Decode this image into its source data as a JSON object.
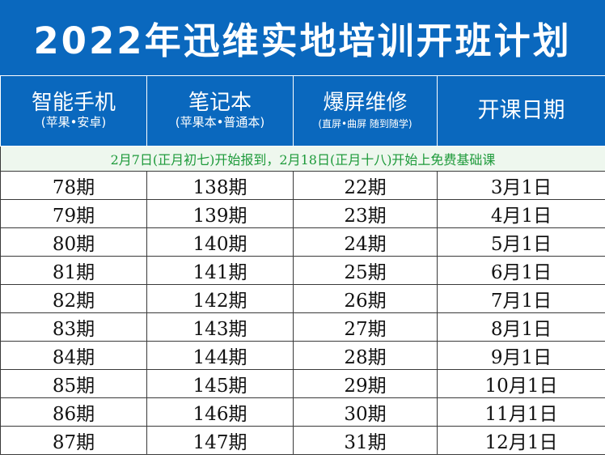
{
  "title": "2022年迅维实地培训开班计划",
  "columns": [
    {
      "name": "智能手机",
      "sub": "(苹果•安卓)"
    },
    {
      "name": "笔记本",
      "sub": "(苹果本•普通本)"
    },
    {
      "name": "爆屏维修",
      "sub": "(直屏•曲屏 随到随学)"
    },
    {
      "name": "开课日期",
      "sub": ""
    }
  ],
  "notice": "2月7日(正月初七)开始报到，2月18日(正月十八)开始上免费基础课",
  "rows": [
    [
      "78期",
      "138期",
      "22期",
      "3月1日"
    ],
    [
      "79期",
      "139期",
      "23期",
      "4月1日"
    ],
    [
      "80期",
      "140期",
      "24期",
      "5月1日"
    ],
    [
      "81期",
      "141期",
      "25期",
      "6月1日"
    ],
    [
      "82期",
      "142期",
      "26期",
      "7月1日"
    ],
    [
      "83期",
      "143期",
      "27期",
      "8月1日"
    ],
    [
      "84期",
      "144期",
      "28期",
      "9月1日"
    ],
    [
      "85期",
      "145期",
      "29期",
      "10月1日"
    ],
    [
      "86期",
      "146期",
      "30期",
      "11月1日"
    ],
    [
      "87期",
      "147期",
      "31期",
      "12月1日"
    ]
  ],
  "colors": {
    "header_bg": "#0a68be",
    "notice_text": "#1d9a3a"
  }
}
